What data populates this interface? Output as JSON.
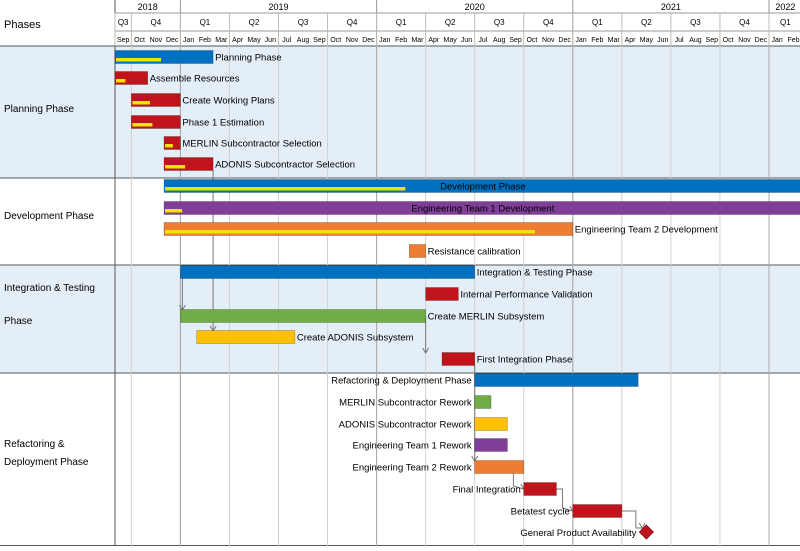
{
  "header": {
    "phases_label": "Phases",
    "years": [
      "2018",
      "2019",
      "2020",
      "2021",
      "2022"
    ],
    "quarters": [
      "Q3",
      "Q4",
      "Q1",
      "Q2",
      "Q3",
      "Q4",
      "Q1",
      "Q2",
      "Q3",
      "Q4",
      "Q1",
      "Q2",
      "Q3",
      "Q4",
      "Q1"
    ],
    "months": [
      "Sep",
      "Oct",
      "Nov",
      "Dec",
      "Jan",
      "Feb",
      "Mar",
      "Apr",
      "May",
      "Jun",
      "Jul",
      "Aug",
      "Sep",
      "Oct",
      "Nov",
      "Dec",
      "Jan",
      "Feb",
      "Mar",
      "Apr",
      "May",
      "Jun",
      "Jul",
      "Aug",
      "Sep",
      "Oct",
      "Nov",
      "Dec",
      "Jan",
      "Feb",
      "Mar",
      "Apr",
      "May",
      "Jun",
      "Jul",
      "Aug",
      "Sep",
      "Oct",
      "Nov",
      "Dec",
      "Jan",
      "Feb"
    ]
  },
  "phases": [
    {
      "label": "Planning Phase"
    },
    {
      "label": "Development Phase"
    },
    {
      "label": "Integration & Testing Phase"
    },
    {
      "label": "Refactoring & Deployment Phase"
    }
  ],
  "colors": {
    "blue": "#0070c0",
    "red": "#c0141c",
    "yellow": "#ffc000",
    "purple": "#7f3f98",
    "orange": "#ed7d31",
    "green": "#70ad47",
    "progress": "#f2e400",
    "band": "#e3eef7"
  },
  "tasks": [
    {
      "name": "Planning Phase",
      "color": "blue",
      "start": "2018-09",
      "end": "2019-02",
      "progress": 0.48
    },
    {
      "name": "Assemble Resources",
      "color": "red",
      "start": "2018-09",
      "end": "2018-10",
      "progress": 0.35
    },
    {
      "name": "Create Working Plans",
      "color": "red",
      "start": "2018-10",
      "end": "2018-12",
      "progress": 0.4
    },
    {
      "name": "Phase 1 Estimation",
      "color": "red",
      "start": "2018-10",
      "end": "2018-12",
      "progress": 0.45
    },
    {
      "name": "MERLIN Subcontractor Selection",
      "color": "red",
      "start": "2018-12",
      "end": "2018-12",
      "progress": 0.6
    },
    {
      "name": "ADONIS Subcontractor Selection",
      "color": "red",
      "start": "2018-12",
      "end": "2019-02",
      "progress": 0.45
    },
    {
      "name": "Development Phase",
      "color": "blue",
      "start": "2018-12",
      "end": "2022-02",
      "progress": 0.38
    },
    {
      "name": "Engineering Team 1 Development",
      "color": "purple",
      "start": "2018-12",
      "end": "2022-02",
      "progress": 0.03
    },
    {
      "name": "Engineering Team 2 Development",
      "color": "orange",
      "start": "2018-12",
      "end": "2020-12",
      "progress": 0.91
    },
    {
      "name": "Resistance calibration",
      "color": "orange",
      "start": "2020-03",
      "end": "2020-03",
      "progress": 0
    },
    {
      "name": "Integration & Testing Phase",
      "color": "blue",
      "start": "2019-01",
      "end": "2020-06",
      "progress": 0
    },
    {
      "name": "Internal Performance Validation",
      "color": "red",
      "start": "2020-04",
      "end": "2020-05",
      "progress": 0
    },
    {
      "name": "Create MERLIN Subsystem",
      "color": "green",
      "start": "2019-01",
      "end": "2020-03",
      "progress": 0
    },
    {
      "name": "Create ADONIS Subsystem",
      "color": "yellow",
      "start": "2019-02",
      "end": "2019-07",
      "progress": 0
    },
    {
      "name": "First Integration Phase",
      "color": "red",
      "start": "2020-05",
      "end": "2020-06",
      "progress": 0
    },
    {
      "name": "Refactoring & Deployment Phase",
      "color": "blue",
      "start": "2020-07",
      "end": "2021-04",
      "progress": 0
    },
    {
      "name": "MERLIN Subcontractor Rework",
      "color": "green",
      "start": "2020-07",
      "end": "2020-07",
      "progress": 0
    },
    {
      "name": "ADONIS Subcontractor Rework",
      "color": "yellow",
      "start": "2020-07",
      "end": "2020-08",
      "progress": 0
    },
    {
      "name": "Engineering Team 1 Rework",
      "color": "purple",
      "start": "2020-07",
      "end": "2020-08",
      "progress": 0
    },
    {
      "name": "Engineering Team 2 Rework",
      "color": "orange",
      "start": "2020-07",
      "end": "2020-09",
      "progress": 0
    },
    {
      "name": "Final Integration",
      "color": "red",
      "start": "2020-10",
      "end": "2020-11",
      "progress": 0
    },
    {
      "name": "Betatest cycle",
      "color": "red",
      "start": "2021-01",
      "end": "2021-03",
      "progress": 0
    },
    {
      "name": "General Product Availability",
      "color": "red",
      "start": "2021-05",
      "end": "2021-05",
      "progress": 0,
      "milestone": true
    }
  ]
}
